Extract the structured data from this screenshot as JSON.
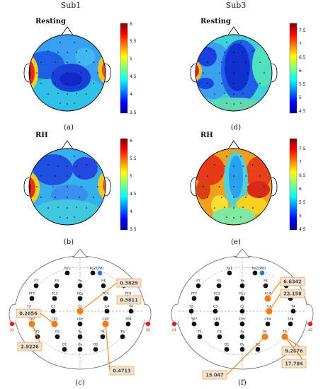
{
  "headers": {
    "left": "Sub1",
    "right": "Sub3"
  },
  "maps": [
    {
      "id": "a",
      "subject": "Sub1",
      "condition": "Resting",
      "panel_label": "(a)",
      "scale": {
        "ticks": [
          "6",
          "5.5",
          "5",
          "4.5",
          "4",
          "3.5"
        ]
      }
    },
    {
      "id": "d",
      "subject": "Sub3",
      "condition": "Resting",
      "panel_label": "(d)",
      "scale": {
        "ticks": [
          "7.5",
          "7",
          "6.5",
          "6",
          "5.5",
          "5",
          "4.5"
        ]
      }
    },
    {
      "id": "b",
      "subject": "Sub1",
      "condition": "RH",
      "panel_label": "(b)",
      "scale": {
        "ticks": [
          "6",
          "5.5",
          "5",
          "4.5",
          "4",
          "3.5"
        ]
      }
    },
    {
      "id": "e",
      "subject": "Sub3",
      "condition": "RH",
      "panel_label": "(e)",
      "scale": {
        "ticks": [
          "7.5",
          "7",
          "6.5",
          "6",
          "5.5",
          "5",
          "4.5"
        ]
      }
    }
  ],
  "montage": {
    "ground": "GND",
    "reference_left": "A1",
    "reference_right": "A2",
    "electrodes": [
      [
        "Fp1",
        "Fp2"
      ],
      [
        "F7",
        "F3",
        "Fz",
        "F4",
        "F8"
      ],
      [
        "FT7",
        "FC3",
        "FCz",
        "FC4",
        "FT8"
      ],
      [
        "T3",
        "C3",
        "Cz",
        "C4",
        "T4"
      ],
      [
        "TP7",
        "CP3",
        "CPz",
        "CP4",
        "TP8"
      ],
      [
        "T5",
        "P3",
        "Pz",
        "P4",
        "T6"
      ],
      [
        "O1",
        "Oz",
        "O2"
      ]
    ]
  },
  "channel_panels": [
    {
      "id": "c",
      "panel_label": "(c)",
      "highlighted": [
        {
          "channel": "TP7",
          "value": "2.9226"
        },
        {
          "channel": "CP3",
          "value": "0.2656"
        },
        {
          "channel": "Cz",
          "value": "0.3829"
        },
        {
          "channel": "FT8",
          "value": "0.3811"
        },
        {
          "channel": "CP4",
          "value": "0.4713"
        }
      ]
    },
    {
      "id": "f",
      "panel_label": "(f)",
      "highlighted": [
        {
          "channel": "FC4",
          "value": "6.6342"
        },
        {
          "channel": "C4",
          "value": "22.158"
        },
        {
          "channel": "T6",
          "value": "9.2076"
        },
        {
          "channel": "T6",
          "value": "17.784"
        },
        {
          "channel": "P4",
          "value": "13.047"
        }
      ]
    }
  ],
  "colors": {
    "electrode": "#111111",
    "highlight": "#f07f16",
    "ground": "#2a7bd1",
    "reference": "#e02020",
    "label_box_fill": "#fde3c4",
    "label_box_stroke": "#e09a52"
  }
}
